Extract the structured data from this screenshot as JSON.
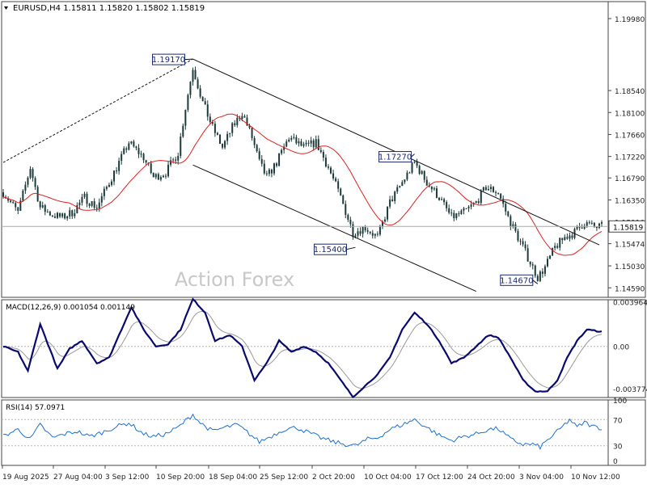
{
  "chart_data": [
    {
      "type": "candlestick",
      "panel": "price",
      "header": "EURUSD,H4  1.15811 1.15820 1.15802 1.15819",
      "watermark": "Action Forex",
      "y_ticks": [
        "1.19980",
        "1.18540",
        "1.18100",
        "1.17660",
        "1.17220",
        "1.16790",
        "1.16350",
        "1.15910",
        "1.15474",
        "1.15030",
        "1.14590"
      ],
      "ylim": [
        1.144,
        1.2032
      ],
      "current_price": "1.15819",
      "price_labels": [
        {
          "text": "1.19170",
          "bar": 77,
          "price": 1.1917
        },
        {
          "text": "1.17270",
          "bar": 167,
          "price": 1.1727
        },
        {
          "text": "1.15400",
          "bar": 143,
          "price": 1.154
        },
        {
          "text": "1.14670",
          "bar": 217,
          "price": 1.1467
        }
      ],
      "ohlc_anchors": [
        [
          0,
          1.165
        ],
        [
          6,
          1.161
        ],
        [
          11,
          1.17
        ],
        [
          15,
          1.162
        ],
        [
          20,
          1.1605
        ],
        [
          24,
          1.16
        ],
        [
          28,
          1.161
        ],
        [
          33,
          1.164
        ],
        [
          38,
          1.162
        ],
        [
          45,
          1.169
        ],
        [
          51,
          1.175
        ],
        [
          57,
          1.172
        ],
        [
          61,
          1.168
        ],
        [
          66,
          1.169
        ],
        [
          71,
          1.173
        ],
        [
          74,
          1.182
        ],
        [
          77,
          1.19
        ],
        [
          81,
          1.183
        ],
        [
          85,
          1.178
        ],
        [
          89,
          1.174
        ],
        [
          93,
          1.178
        ],
        [
          97,
          1.181
        ],
        [
          101,
          1.176
        ],
        [
          104,
          1.171
        ],
        [
          107,
          1.168
        ],
        [
          111,
          1.171
        ],
        [
          116,
          1.176
        ],
        [
          122,
          1.174
        ],
        [
          127,
          1.175
        ],
        [
          132,
          1.17
        ],
        [
          137,
          1.164
        ],
        [
          142,
          1.157
        ],
        [
          147,
          1.158
        ],
        [
          152,
          1.156
        ],
        [
          157,
          1.163
        ],
        [
          162,
          1.167
        ],
        [
          167,
          1.171
        ],
        [
          172,
          1.167
        ],
        [
          177,
          1.164
        ],
        [
          182,
          1.16
        ],
        [
          187,
          1.161
        ],
        [
          192,
          1.163
        ],
        [
          196,
          1.166
        ],
        [
          201,
          1.165
        ],
        [
          205,
          1.16
        ],
        [
          210,
          1.155
        ],
        [
          214,
          1.151
        ],
        [
          217,
          1.148
        ],
        [
          220,
          1.15
        ],
        [
          224,
          1.154
        ],
        [
          228,
          1.156
        ],
        [
          232,
          1.157
        ],
        [
          236,
          1.159
        ],
        [
          240,
          1.158
        ],
        [
          243,
          1.1582
        ]
      ],
      "series": [
        {
          "name": "MA",
          "color": "#e02020"
        }
      ],
      "trend_lines": [
        {
          "style": "dashed",
          "from": [
            0,
            1.171
          ],
          "to": [
            77,
            1.1917
          ]
        },
        {
          "style": "solid",
          "from": [
            77,
            1.1917
          ],
          "to": [
            242,
            1.1545
          ]
        },
        {
          "style": "solid",
          "from": [
            77,
            1.1705
          ],
          "to": [
            192,
            1.1452
          ]
        }
      ]
    },
    {
      "type": "line",
      "panel": "macd",
      "header": "MACD(12,26,9) 0.001054 0.001149",
      "y_ticks": [
        "0.003964",
        "0.00",
        "-0.003774"
      ],
      "ylim": [
        -0.00455,
        0.00415
      ],
      "anchors": [
        [
          0,
          0.0
        ],
        [
          6,
          -0.0005
        ],
        [
          10,
          -0.0022
        ],
        [
          15,
          0.002
        ],
        [
          22,
          -0.002
        ],
        [
          27,
          -0.0002
        ],
        [
          32,
          0.0005
        ],
        [
          38,
          -0.0015
        ],
        [
          43,
          -0.001
        ],
        [
          47,
          0.001
        ],
        [
          52,
          0.0035
        ],
        [
          57,
          0.0015
        ],
        [
          62,
          0.0
        ],
        [
          67,
          0.0002
        ],
        [
          72,
          0.0015
        ],
        [
          77,
          0.0042
        ],
        [
          82,
          0.003
        ],
        [
          86,
          0.0005
        ],
        [
          92,
          0.001
        ],
        [
          97,
          0.0
        ],
        [
          102,
          -0.003
        ],
        [
          107,
          -0.0015
        ],
        [
          112,
          0.0005
        ],
        [
          117,
          -0.0005
        ],
        [
          122,
          0.0
        ],
        [
          127,
          -0.0005
        ],
        [
          132,
          -0.0015
        ],
        [
          137,
          -0.003
        ],
        [
          142,
          -0.0045
        ],
        [
          147,
          -0.0035
        ],
        [
          152,
          -0.0025
        ],
        [
          157,
          -0.001
        ],
        [
          162,
          0.0015
        ],
        [
          167,
          0.003
        ],
        [
          172,
          0.002
        ],
        [
          177,
          0.0005
        ],
        [
          182,
          -0.0015
        ],
        [
          187,
          -0.001
        ],
        [
          192,
          0.0
        ],
        [
          197,
          0.001
        ],
        [
          201,
          0.0008
        ],
        [
          206,
          -0.001
        ],
        [
          211,
          -0.003
        ],
        [
          216,
          -0.004
        ],
        [
          221,
          -0.004
        ],
        [
          225,
          -0.003
        ],
        [
          229,
          -0.001
        ],
        [
          233,
          0.0005
        ],
        [
          237,
          0.0015
        ],
        [
          240,
          0.0014
        ],
        [
          243,
          0.0013
        ]
      ],
      "series": [
        {
          "name": "MACD",
          "color": "#0a0a6e"
        },
        {
          "name": "Signal",
          "color": "#999999"
        }
      ]
    },
    {
      "type": "line",
      "panel": "rsi",
      "header": "RSI(14) 57.0971",
      "y_ticks": [
        "100",
        "70",
        "30",
        "0"
      ],
      "levels": [
        70,
        30
      ],
      "ylim": [
        0,
        100
      ],
      "anchors": [
        [
          0,
          45
        ],
        [
          6,
          55
        ],
        [
          11,
          40
        ],
        [
          15,
          62
        ],
        [
          20,
          42
        ],
        [
          25,
          48
        ],
        [
          30,
          52
        ],
        [
          35,
          44
        ],
        [
          40,
          50
        ],
        [
          45,
          58
        ],
        [
          51,
          65
        ],
        [
          57,
          48
        ],
        [
          61,
          44
        ],
        [
          66,
          48
        ],
        [
          71,
          58
        ],
        [
          74,
          68
        ],
        [
          77,
          78
        ],
        [
          80,
          65
        ],
        [
          85,
          52
        ],
        [
          90,
          58
        ],
        [
          95,
          62
        ],
        [
          100,
          48
        ],
        [
          104,
          36
        ],
        [
          109,
          45
        ],
        [
          114,
          55
        ],
        [
          119,
          58
        ],
        [
          124,
          50
        ],
        [
          129,
          42
        ],
        [
          134,
          36
        ],
        [
          139,
          32
        ],
        [
          143,
          30
        ],
        [
          148,
          40
        ],
        [
          152,
          42
        ],
        [
          157,
          55
        ],
        [
          162,
          62
        ],
        [
          167,
          70
        ],
        [
          172,
          58
        ],
        [
          177,
          46
        ],
        [
          182,
          38
        ],
        [
          187,
          44
        ],
        [
          192,
          48
        ],
        [
          197,
          55
        ],
        [
          201,
          56
        ],
        [
          206,
          40
        ],
        [
          211,
          32
        ],
        [
          215,
          32
        ],
        [
          218,
          28
        ],
        [
          222,
          42
        ],
        [
          226,
          55
        ],
        [
          230,
          70
        ],
        [
          233,
          58
        ],
        [
          236,
          66
        ],
        [
          239,
          60
        ],
        [
          243,
          57
        ]
      ],
      "series": [
        {
          "name": "RSI",
          "color": "#1e6fd1"
        }
      ]
    },
    {
      "type": "time_axis",
      "x_ticks": [
        "19 Aug 2025",
        "27 Aug 04:00",
        "3 Sep 12:00",
        "10 Sep 20:00",
        "18 Sep 04:00",
        "25 Sep 12:00",
        "2 Oct 20:00",
        "10 Oct 04:00",
        "17 Oct 12:00",
        "24 Oct 20:00",
        "3 Nov 04:00",
        "10 Nov 12:00"
      ]
    }
  ]
}
